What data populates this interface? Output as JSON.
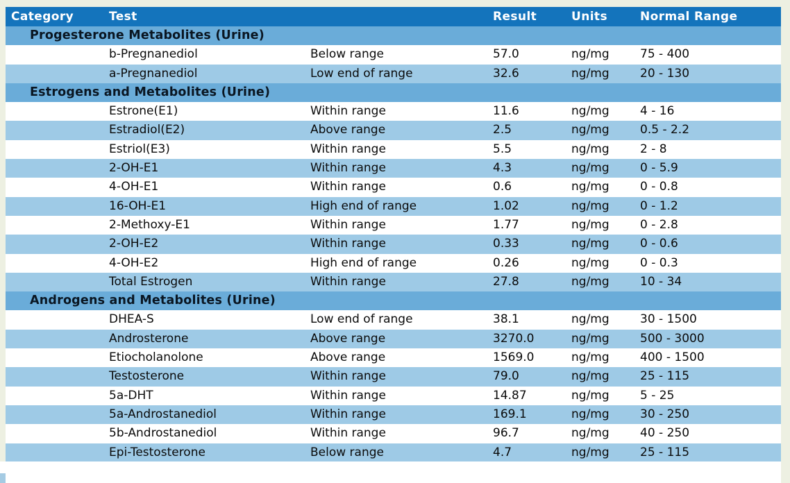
{
  "colors": {
    "page_background": "#EDF0E2",
    "header_background": "#1474BC",
    "header_text": "#FFFFFF",
    "section_background": "#6AACD9",
    "row_alt_background": "#9ECAE6",
    "row_background": "#FFFFFF",
    "body_text": "#0A0A0A"
  },
  "table": {
    "header": {
      "category": "Category",
      "test": "Test",
      "result": "Result",
      "units": "Units",
      "normal_range": "Normal Range"
    },
    "sections": [
      {
        "title": "Progesterone Metabolites (Urine)",
        "rows": [
          {
            "test": "b-Pregnanediol",
            "status": "Below range",
            "result": "57.0",
            "units": "ng/mg",
            "range": "75 - 400"
          },
          {
            "test": "a-Pregnanediol",
            "status": "Low end of range",
            "result": "32.6",
            "units": "ng/mg",
            "range": "20 - 130"
          }
        ]
      },
      {
        "title": "Estrogens and Metabolites (Urine)",
        "rows": [
          {
            "test": "Estrone(E1)",
            "status": "Within range",
            "result": "11.6",
            "units": "ng/mg",
            "range": "4 - 16"
          },
          {
            "test": "Estradiol(E2)",
            "status": "Above range",
            "result": "2.5",
            "units": "ng/mg",
            "range": "0.5 - 2.2"
          },
          {
            "test": "Estriol(E3)",
            "status": "Within range",
            "result": "5.5",
            "units": "ng/mg",
            "range": "2 - 8"
          },
          {
            "test": "2-OH-E1",
            "status": "Within range",
            "result": "4.3",
            "units": "ng/mg",
            "range": "0 - 5.9"
          },
          {
            "test": "4-OH-E1",
            "status": "Within range",
            "result": "0.6",
            "units": "ng/mg",
            "range": "0 - 0.8"
          },
          {
            "test": "16-OH-E1",
            "status": "High end of range",
            "result": "1.02",
            "units": "ng/mg",
            "range": "0 - 1.2"
          },
          {
            "test": "2-Methoxy-E1",
            "status": "Within range",
            "result": "1.77",
            "units": "ng/mg",
            "range": "0 - 2.8"
          },
          {
            "test": "2-OH-E2",
            "status": "Within range",
            "result": "0.33",
            "units": "ng/mg",
            "range": "0 - 0.6"
          },
          {
            "test": "4-OH-E2",
            "status": "High end of range",
            "result": "0.26",
            "units": "ng/mg",
            "range": "0 - 0.3"
          },
          {
            "test": "Total Estrogen",
            "status": "Within range",
            "result": "27.8",
            "units": "ng/mg",
            "range": "10 - 34"
          }
        ]
      },
      {
        "title": "Androgens and Metabolites (Urine)",
        "rows": [
          {
            "test": "DHEA-S",
            "status": "Low end of range",
            "result": "38.1",
            "units": "ng/mg",
            "range": "30 - 1500"
          },
          {
            "test": "Androsterone",
            "status": "Above range",
            "result": "3270.0",
            "units": "ng/mg",
            "range": "500 - 3000"
          },
          {
            "test": "Etiocholanolone",
            "status": "Above range",
            "result": "1569.0",
            "units": "ng/mg",
            "range": "400 - 1500"
          },
          {
            "test": "Testosterone",
            "status": "Within range",
            "result": "79.0",
            "units": "ng/mg",
            "range": "25 - 115"
          },
          {
            "test": "5a-DHT",
            "status": "Within range",
            "result": "14.87",
            "units": "ng/mg",
            "range": "5 - 25"
          },
          {
            "test": "5a-Androstanediol",
            "status": "Within range",
            "result": "169.1",
            "units": "ng/mg",
            "range": "30 - 250"
          },
          {
            "test": "5b-Androstanediol",
            "status": "Within range",
            "result": "96.7",
            "units": "ng/mg",
            "range": "40 - 250"
          },
          {
            "test": "Epi-Testosterone",
            "status": "Below range",
            "result": "4.7",
            "units": "ng/mg",
            "range": "25 - 115"
          }
        ]
      }
    ]
  }
}
